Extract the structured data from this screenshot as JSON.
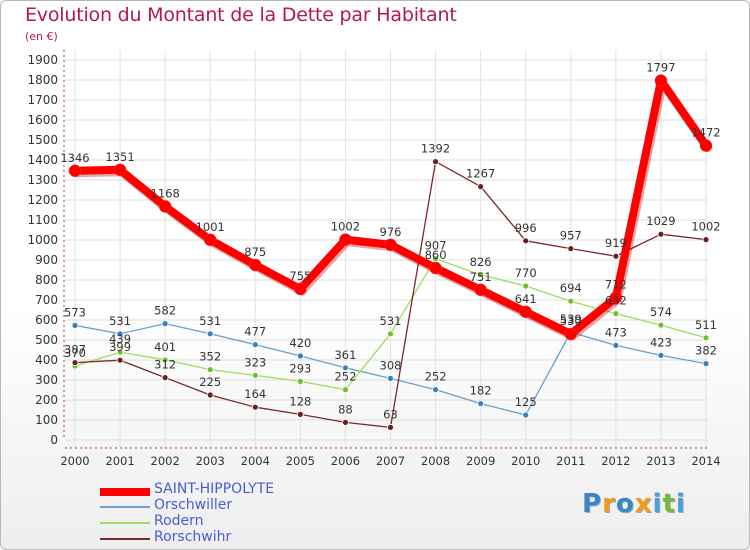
{
  "title": "Evolution du Montant de la Dette par Habitant",
  "subtitle": "(en €)",
  "chart_data": {
    "type": "line",
    "x": [
      2000,
      2001,
      2002,
      2003,
      2004,
      2005,
      2006,
      2007,
      2008,
      2009,
      2010,
      2011,
      2012,
      2013,
      2014
    ],
    "ylim": [
      0,
      1900
    ],
    "yticks": [
      0,
      100,
      200,
      300,
      400,
      500,
      600,
      700,
      800,
      900,
      1000,
      1100,
      1200,
      1300,
      1400,
      1500,
      1600,
      1700,
      1800,
      1900
    ],
    "grid": true,
    "series": [
      {
        "name": "Orschwiller",
        "color": "#6a9fcf",
        "marker": "#3d7fbd",
        "values": [
          573,
          531,
          582,
          531,
          477,
          420,
          361,
          308,
          252,
          182,
          125,
          539,
          473,
          423,
          382
        ]
      },
      {
        "name": "Rodern",
        "color": "#9ddc60",
        "marker": "#6bc22c",
        "values": [
          370,
          439,
          401,
          352,
          323,
          293,
          252,
          531,
          907,
          826,
          770,
          694,
          632,
          574,
          511
        ]
      },
      {
        "name": "Rorschwihr",
        "color": "#7a2a2a",
        "marker": "#6a1e1e",
        "values": [
          387,
          399,
          312,
          225,
          164,
          128,
          88,
          63,
          1392,
          1267,
          996,
          957,
          919,
          1029,
          1002
        ]
      },
      {
        "name": "SAINT-HIPPOLYTE",
        "color": "#ff0000",
        "marker": "#ff0000",
        "values": [
          1346,
          1351,
          1168,
          1001,
          875,
          755,
          1002,
          976,
          860,
          751,
          641,
          530,
          712,
          1797,
          1472
        ]
      }
    ]
  },
  "legend": [
    {
      "label": "SAINT-HIPPOLYTE",
      "color": "#ff0000"
    },
    {
      "label": "Orschwiller",
      "color": "#6a9fcf"
    },
    {
      "label": "Rodern",
      "color": "#9ddc60"
    },
    {
      "label": "Rorschwihr",
      "color": "#7a2a2a"
    }
  ],
  "logo": {
    "text": "Proxiti",
    "colors": [
      "#3a86c8",
      "#f29a1a",
      "#3a86c8",
      "#f29a1a",
      "#4aa0d8",
      "#79b83a",
      "#4aa0d8"
    ]
  }
}
